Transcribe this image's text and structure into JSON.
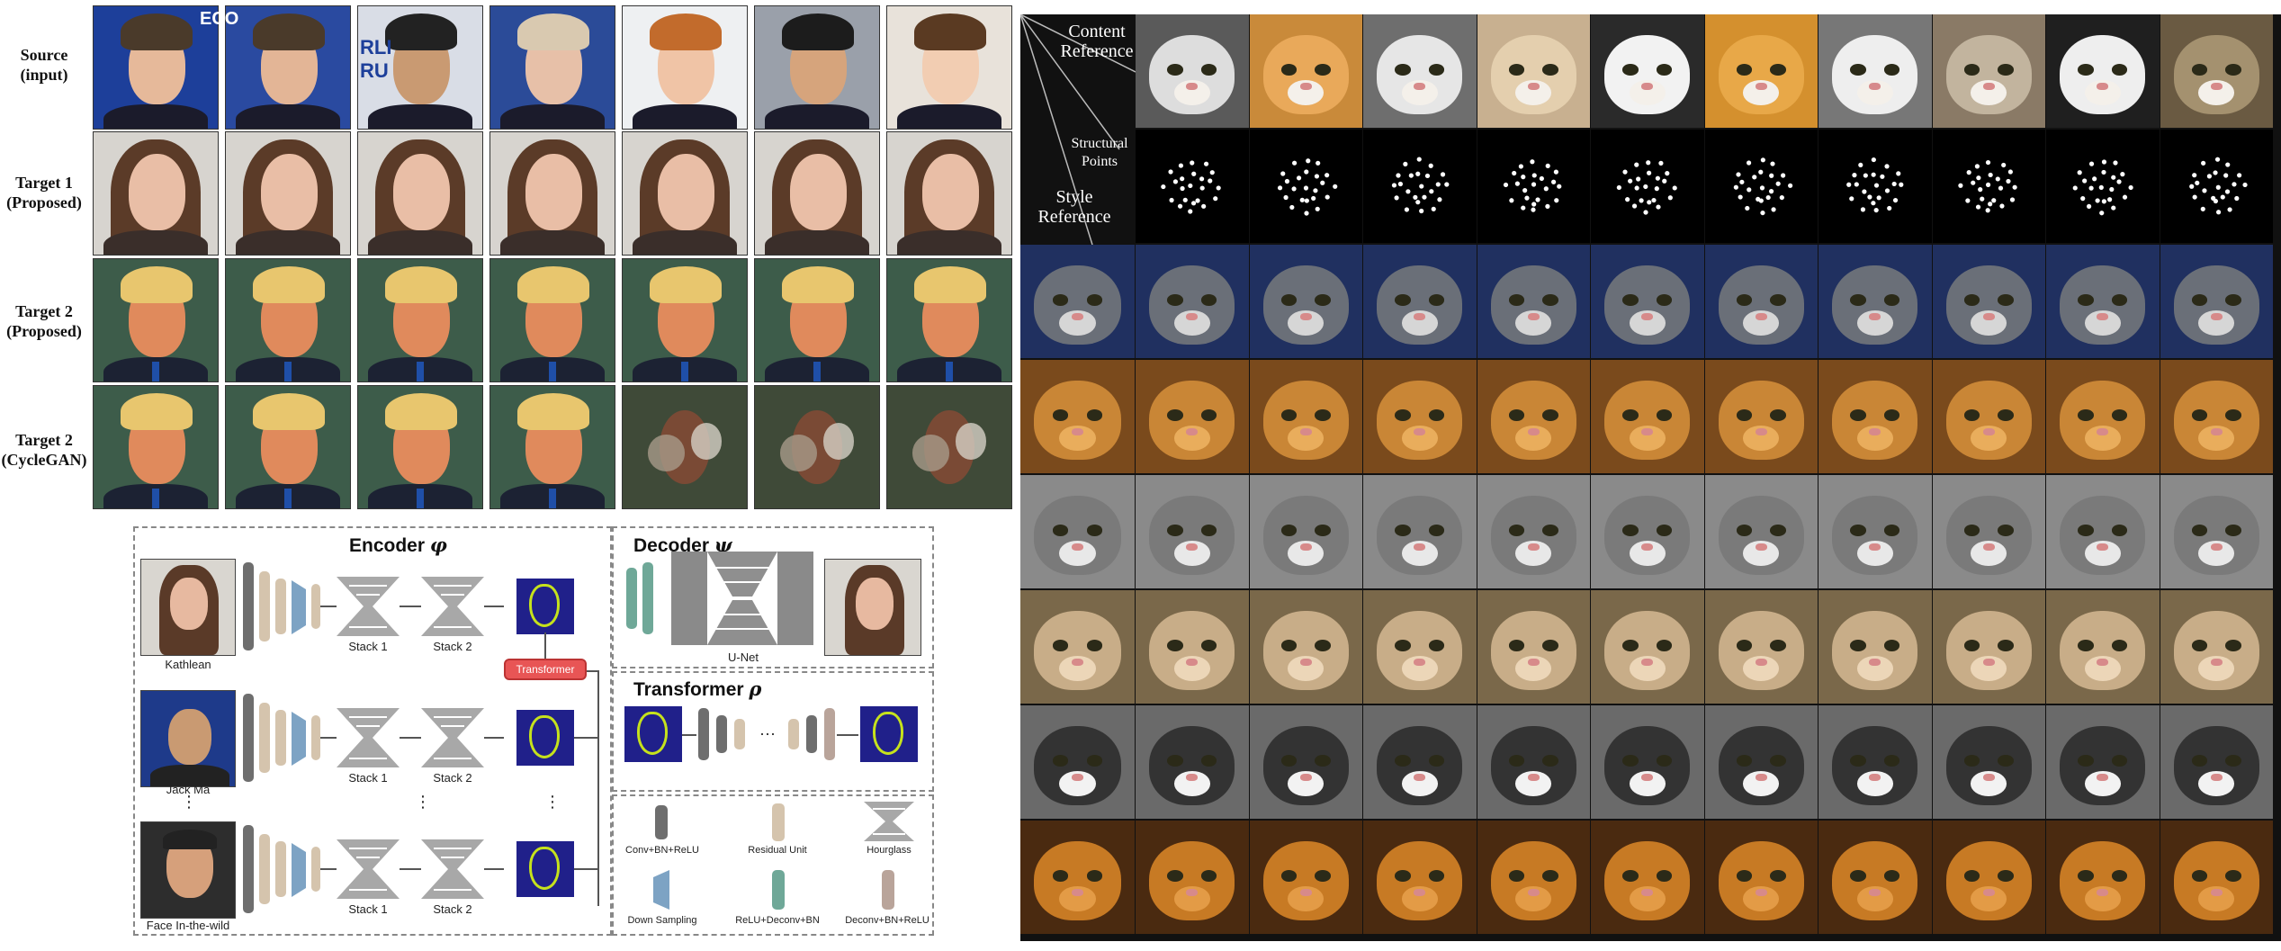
{
  "left_grid": {
    "row_labels": [
      {
        "line1": "Source",
        "line2": "(input)"
      },
      {
        "line1": "Target 1",
        "line2": "(Proposed)"
      },
      {
        "line1": "Target 2",
        "line2": "(Proposed)"
      },
      {
        "line1": "Target 2",
        "line2": "(CycleGAN)"
      }
    ],
    "overlay_texts": [
      "ECO",
      "RLI",
      "RU"
    ]
  },
  "diagram": {
    "encoder_title": "Encoder",
    "encoder_symbol": "φ",
    "decoder_title": "Decoder",
    "decoder_symbol": "ψ",
    "transformer_title": "Transformer",
    "transformer_symbol": "ρ",
    "transformer_button": "Transformer",
    "stack1": "Stack 1",
    "stack2": "Stack 2",
    "unet": "U-Net",
    "inputs": [
      "Kathlean",
      "Jack Ma",
      "Face In-the-wild"
    ],
    "vdots": "⋮",
    "hdots": "···",
    "legend": [
      {
        "label": "Conv+BN+ReLU",
        "kind": "conv"
      },
      {
        "label": "Residual Unit",
        "kind": "res"
      },
      {
        "label": "Hourglass",
        "kind": "hourglass"
      },
      {
        "label": "Down Sampling",
        "kind": "down"
      },
      {
        "label": "ReLU+Deconv+BN",
        "kind": "deconv"
      },
      {
        "label": "Deconv+BN+ReLU",
        "kind": "debn"
      }
    ]
  },
  "cat_grid": {
    "header_content": {
      "line1": "Content",
      "line2": "Reference"
    },
    "header_structural": {
      "line1": "Structural",
      "line2": "Points"
    },
    "header_style": {
      "line1": "Style",
      "line2": "Reference"
    }
  },
  "colors": {
    "mask_bg": "#20208a",
    "mask_fg": "#c6e21c",
    "transformer_btn": "#e85555"
  }
}
